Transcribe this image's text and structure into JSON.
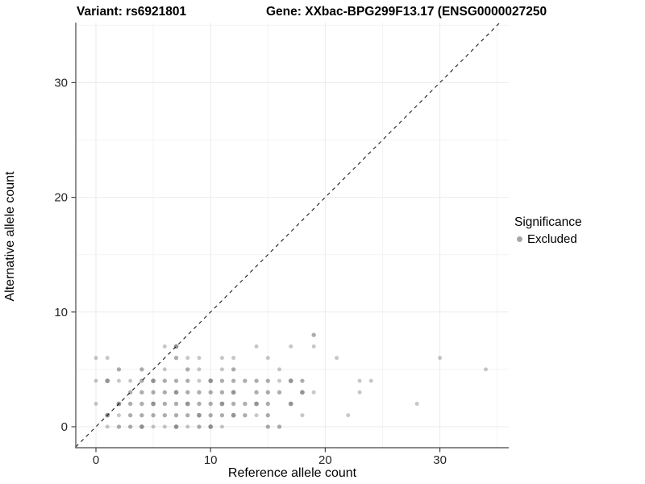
{
  "titles": {
    "variant": "Variant: rs6921801",
    "gene": "Gene: XXbac-BPG299F13.17 (ENSG0000027250"
  },
  "legend": {
    "title": "Significance",
    "items": [
      {
        "label": "Excluded",
        "color": "#a6a6a6"
      }
    ]
  },
  "colors": {
    "point": "#000000",
    "axis_line": "#454545",
    "tick_label": "#262626",
    "grid_major": "#ebebeb",
    "grid_minor": "#f4f4f4",
    "identity_line": "#1a1a1a"
  },
  "chart_data": {
    "type": "scatter",
    "title": "Variant: rs6921801 / Gene: XXbac-BPG299F13.17 (ENSG0000027250",
    "xlabel": "Reference allele count",
    "ylabel": "Alternative allele count",
    "xlim": [
      -1.8,
      36
    ],
    "ylim": [
      -1.9,
      35.3
    ],
    "x_ticks": [
      0,
      10,
      20,
      30
    ],
    "y_ticks": [
      0,
      10,
      20,
      30
    ],
    "x_minor_ticks": [
      5,
      15,
      25,
      35
    ],
    "y_minor_ticks": [
      5,
      15,
      25,
      35
    ],
    "grid": true,
    "legend_position": "right",
    "identity_line": {
      "shown": true,
      "style": "dashed",
      "equation": "y = x"
    },
    "series": [
      {
        "name": "Excluded",
        "points": [
          [
            1,
            0,
            0.22
          ],
          [
            2,
            0,
            0.32
          ],
          [
            3,
            0,
            0.32
          ],
          [
            4,
            0,
            0.42
          ],
          [
            5,
            0,
            0.22
          ],
          [
            6,
            0,
            0.22
          ],
          [
            7,
            0,
            0.42
          ],
          [
            8,
            0,
            0.22
          ],
          [
            9,
            0,
            0.32
          ],
          [
            10,
            0,
            0.42
          ],
          [
            11,
            0,
            0.22
          ],
          [
            15,
            0,
            0.32
          ],
          [
            16,
            0,
            0.32
          ],
          [
            1,
            1,
            0.42
          ],
          [
            2,
            1,
            0.22
          ],
          [
            3,
            1,
            0.32
          ],
          [
            4,
            1,
            0.32
          ],
          [
            5,
            1,
            0.32
          ],
          [
            6,
            1,
            0.32
          ],
          [
            7,
            1,
            0.32
          ],
          [
            8,
            1,
            0.32
          ],
          [
            9,
            1,
            0.42
          ],
          [
            10,
            1,
            0.32
          ],
          [
            11,
            1,
            0.32
          ],
          [
            12,
            1,
            0.42
          ],
          [
            13,
            1,
            0.32
          ],
          [
            14,
            1,
            0.22
          ],
          [
            15,
            1,
            0.32
          ],
          [
            18,
            1,
            0.22
          ],
          [
            22,
            1,
            0.22
          ],
          [
            0,
            2,
            0.22
          ],
          [
            2,
            2,
            0.42
          ],
          [
            3,
            2,
            0.32
          ],
          [
            4,
            2,
            0.32
          ],
          [
            5,
            2,
            0.42
          ],
          [
            6,
            2,
            0.32
          ],
          [
            7,
            2,
            0.32
          ],
          [
            8,
            2,
            0.42
          ],
          [
            9,
            2,
            0.32
          ],
          [
            10,
            2,
            0.32
          ],
          [
            11,
            2,
            0.42
          ],
          [
            12,
            2,
            0.32
          ],
          [
            13,
            2,
            0.32
          ],
          [
            14,
            2,
            0.42
          ],
          [
            15,
            2,
            0.32
          ],
          [
            17,
            2,
            0.42
          ],
          [
            28,
            2,
            0.22
          ],
          [
            3,
            3,
            0.32
          ],
          [
            4,
            3,
            0.32
          ],
          [
            5,
            3,
            0.32
          ],
          [
            6,
            3,
            0.32
          ],
          [
            7,
            3,
            0.42
          ],
          [
            8,
            3,
            0.32
          ],
          [
            9,
            3,
            0.32
          ],
          [
            10,
            3,
            0.32
          ],
          [
            11,
            3,
            0.32
          ],
          [
            12,
            3,
            0.42
          ],
          [
            14,
            3,
            0.32
          ],
          [
            15,
            3,
            0.32
          ],
          [
            16,
            3,
            0.32
          ],
          [
            18,
            3,
            0.42
          ],
          [
            19,
            3,
            0.22
          ],
          [
            23,
            3,
            0.22
          ],
          [
            0,
            4,
            0.22
          ],
          [
            1,
            4,
            0.42
          ],
          [
            2,
            4,
            0.22
          ],
          [
            3,
            4,
            0.22
          ],
          [
            4,
            4,
            0.32
          ],
          [
            5,
            4,
            0.42
          ],
          [
            6,
            4,
            0.32
          ],
          [
            7,
            4,
            0.32
          ],
          [
            8,
            4,
            0.32
          ],
          [
            9,
            4,
            0.22
          ],
          [
            10,
            4,
            0.42
          ],
          [
            11,
            4,
            0.32
          ],
          [
            12,
            4,
            0.32
          ],
          [
            13,
            4,
            0.32
          ],
          [
            14,
            4,
            0.32
          ],
          [
            15,
            4,
            0.32
          ],
          [
            16,
            4,
            0.22
          ],
          [
            17,
            4,
            0.42
          ],
          [
            18,
            4,
            0.32
          ],
          [
            23,
            4,
            0.22
          ],
          [
            24,
            4,
            0.22
          ],
          [
            2,
            5,
            0.32
          ],
          [
            4,
            5,
            0.32
          ],
          [
            6,
            5,
            0.22
          ],
          [
            8,
            5,
            0.32
          ],
          [
            9,
            5,
            0.22
          ],
          [
            11,
            5,
            0.22
          ],
          [
            12,
            5,
            0.32
          ],
          [
            16,
            5,
            0.22
          ],
          [
            34,
            5,
            0.22
          ],
          [
            0,
            6,
            0.22
          ],
          [
            1,
            6,
            0.22
          ],
          [
            7,
            6,
            0.32
          ],
          [
            8,
            6,
            0.22
          ],
          [
            9,
            6,
            0.22
          ],
          [
            11,
            6,
            0.22
          ],
          [
            12,
            6,
            0.22
          ],
          [
            15,
            6,
            0.22
          ],
          [
            21,
            6,
            0.22
          ],
          [
            30,
            6,
            0.22
          ],
          [
            6,
            7,
            0.22
          ],
          [
            7,
            7,
            0.42
          ],
          [
            14,
            7,
            0.22
          ],
          [
            17,
            7,
            0.22
          ],
          [
            19,
            7,
            0.22
          ],
          [
            19,
            8,
            0.32
          ]
        ]
      }
    ]
  }
}
